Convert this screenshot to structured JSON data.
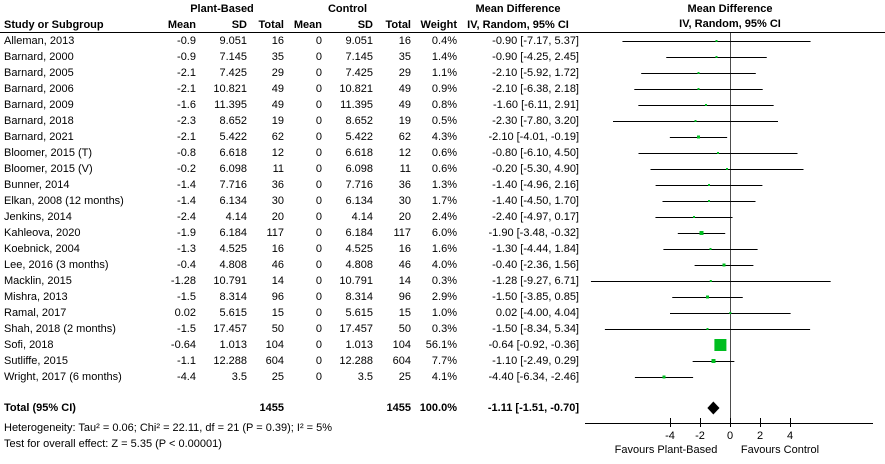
{
  "table": {
    "group_headers": {
      "plant_based": "Plant-Based",
      "control": "Control",
      "mean_difference_text": "Mean Difference",
      "mean_difference_plot": "Mean Difference"
    },
    "col_headers": {
      "study": "Study or Subgroup",
      "mean_pb": "Mean",
      "sd_pb": "SD",
      "total_pb": "Total",
      "mean_c": "Mean",
      "sd_c": "SD",
      "total_c": "Total",
      "weight": "Weight",
      "iv_text": "IV, Random, 95% CI",
      "iv_plot": "IV, Random, 95% CI"
    }
  },
  "chart_data": {
    "type": "scatter",
    "subtype": "forest-plot",
    "effect_measure": "Mean Difference",
    "model": "IV, Random, 95% CI",
    "marker_color": "#00be20",
    "x_ticks": [
      -4,
      -2,
      0,
      2,
      4
    ],
    "favours_left": "Favours Plant-Based",
    "favours_right": "Favours Control",
    "studies": [
      {
        "name": "Alleman, 2013",
        "mean_pb": "-0.9",
        "sd_pb": "9.051",
        "total_pb": "16",
        "mean_c": "0",
        "sd_c": "9.051",
        "total_c": "16",
        "weight": "0.4%",
        "md": -0.9,
        "ci_low": -7.17,
        "ci_high": 5.37,
        "md_label": "-0.90 [-7.17, 5.37]"
      },
      {
        "name": "Barnard, 2000",
        "mean_pb": "-0.9",
        "sd_pb": "7.145",
        "total_pb": "35",
        "mean_c": "0",
        "sd_c": "7.145",
        "total_c": "35",
        "weight": "1.4%",
        "md": -0.9,
        "ci_low": -4.25,
        "ci_high": 2.45,
        "md_label": "-0.90 [-4.25, 2.45]"
      },
      {
        "name": "Barnard, 2005",
        "mean_pb": "-2.1",
        "sd_pb": "7.425",
        "total_pb": "29",
        "mean_c": "0",
        "sd_c": "7.425",
        "total_c": "29",
        "weight": "1.1%",
        "md": -2.1,
        "ci_low": -5.92,
        "ci_high": 1.72,
        "md_label": "-2.10 [-5.92, 1.72]"
      },
      {
        "name": "Barnard, 2006",
        "mean_pb": "-2.1",
        "sd_pb": "10.821",
        "total_pb": "49",
        "mean_c": "0",
        "sd_c": "10.821",
        "total_c": "49",
        "weight": "0.9%",
        "md": -2.1,
        "ci_low": -6.38,
        "ci_high": 2.18,
        "md_label": "-2.10 [-6.38, 2.18]"
      },
      {
        "name": "Barnard, 2009",
        "mean_pb": "-1.6",
        "sd_pb": "11.395",
        "total_pb": "49",
        "mean_c": "0",
        "sd_c": "11.395",
        "total_c": "49",
        "weight": "0.8%",
        "md": -1.6,
        "ci_low": -6.11,
        "ci_high": 2.91,
        "md_label": "-1.60 [-6.11, 2.91]"
      },
      {
        "name": "Barnard, 2018",
        "mean_pb": "-2.3",
        "sd_pb": "8.652",
        "total_pb": "19",
        "mean_c": "0",
        "sd_c": "8.652",
        "total_c": "19",
        "weight": "0.5%",
        "md": -2.3,
        "ci_low": -7.8,
        "ci_high": 3.2,
        "md_label": "-2.30 [-7.80, 3.20]"
      },
      {
        "name": "Barnard, 2021",
        "mean_pb": "-2.1",
        "sd_pb": "5.422",
        "total_pb": "62",
        "mean_c": "0",
        "sd_c": "5.422",
        "total_c": "62",
        "weight": "4.3%",
        "md": -2.1,
        "ci_low": -4.01,
        "ci_high": -0.19,
        "md_label": "-2.10 [-4.01, -0.19]"
      },
      {
        "name": "Bloomer, 2015 (T)",
        "mean_pb": "-0.8",
        "sd_pb": "6.618",
        "total_pb": "12",
        "mean_c": "0",
        "sd_c": "6.618",
        "total_c": "12",
        "weight": "0.6%",
        "md": -0.8,
        "ci_low": -6.1,
        "ci_high": 4.5,
        "md_label": "-0.80 [-6.10, 4.50]"
      },
      {
        "name": "Bloomer, 2015 (V)",
        "mean_pb": "-0.2",
        "sd_pb": "6.098",
        "total_pb": "11",
        "mean_c": "0",
        "sd_c": "6.098",
        "total_c": "11",
        "weight": "0.6%",
        "md": -0.2,
        "ci_low": -5.3,
        "ci_high": 4.9,
        "md_label": "-0.20 [-5.30, 4.90]"
      },
      {
        "name": "Bunner, 2014",
        "mean_pb": "-1.4",
        "sd_pb": "7.716",
        "total_pb": "36",
        "mean_c": "0",
        "sd_c": "7.716",
        "total_c": "36",
        "weight": "1.3%",
        "md": -1.4,
        "ci_low": -4.96,
        "ci_high": 2.16,
        "md_label": "-1.40 [-4.96, 2.16]"
      },
      {
        "name": "Elkan, 2008 (12 months)",
        "mean_pb": "-1.4",
        "sd_pb": "6.134",
        "total_pb": "30",
        "mean_c": "0",
        "sd_c": "6.134",
        "total_c": "30",
        "weight": "1.7%",
        "md": -1.4,
        "ci_low": -4.5,
        "ci_high": 1.7,
        "md_label": "-1.40 [-4.50, 1.70]"
      },
      {
        "name": "Jenkins, 2014",
        "mean_pb": "-2.4",
        "sd_pb": "4.14",
        "total_pb": "20",
        "mean_c": "0",
        "sd_c": "4.14",
        "total_c": "20",
        "weight": "2.4%",
        "md": -2.4,
        "ci_low": -4.97,
        "ci_high": 0.17,
        "md_label": "-2.40 [-4.97, 0.17]"
      },
      {
        "name": "Kahleova, 2020",
        "mean_pb": "-1.9",
        "sd_pb": "6.184",
        "total_pb": "117",
        "mean_c": "0",
        "sd_c": "6.184",
        "total_c": "117",
        "weight": "6.0%",
        "md": -1.9,
        "ci_low": -3.48,
        "ci_high": -0.32,
        "md_label": "-1.90 [-3.48, -0.32]"
      },
      {
        "name": "Koebnick, 2004",
        "mean_pb": "-1.3",
        "sd_pb": "4.525",
        "total_pb": "16",
        "mean_c": "0",
        "sd_c": "4.525",
        "total_c": "16",
        "weight": "1.6%",
        "md": -1.3,
        "ci_low": -4.44,
        "ci_high": 1.84,
        "md_label": "-1.30 [-4.44, 1.84]"
      },
      {
        "name": "Lee, 2016 (3 months)",
        "mean_pb": "-0.4",
        "sd_pb": "4.808",
        "total_pb": "46",
        "mean_c": "0",
        "sd_c": "4.808",
        "total_c": "46",
        "weight": "4.0%",
        "md": -0.4,
        "ci_low": -2.36,
        "ci_high": 1.56,
        "md_label": "-0.40 [-2.36, 1.56]"
      },
      {
        "name": "Macklin, 2015",
        "mean_pb": "-1.28",
        "sd_pb": "10.791",
        "total_pb": "14",
        "mean_c": "0",
        "sd_c": "10.791",
        "total_c": "14",
        "weight": "0.3%",
        "md": -1.28,
        "ci_low": -9.27,
        "ci_high": 6.71,
        "md_label": "-1.28 [-9.27, 6.71]"
      },
      {
        "name": "Mishra, 2013",
        "mean_pb": "-1.5",
        "sd_pb": "8.314",
        "total_pb": "96",
        "mean_c": "0",
        "sd_c": "8.314",
        "total_c": "96",
        "weight": "2.9%",
        "md": -1.5,
        "ci_low": -3.85,
        "ci_high": 0.85,
        "md_label": "-1.50 [-3.85, 0.85]"
      },
      {
        "name": "Ramal, 2017",
        "mean_pb": "0.02",
        "sd_pb": "5.615",
        "total_pb": "15",
        "mean_c": "0",
        "sd_c": "5.615",
        "total_c": "15",
        "weight": "1.0%",
        "md": 0.02,
        "ci_low": -4.0,
        "ci_high": 4.04,
        "md_label": "0.02 [-4.00, 4.04]"
      },
      {
        "name": "Shah, 2018 (2 months)",
        "mean_pb": "-1.5",
        "sd_pb": "17.457",
        "total_pb": "50",
        "mean_c": "0",
        "sd_c": "17.457",
        "total_c": "50",
        "weight": "0.3%",
        "md": -1.5,
        "ci_low": -8.34,
        "ci_high": 5.34,
        "md_label": "-1.50 [-8.34, 5.34]"
      },
      {
        "name": "Sofi, 2018",
        "mean_pb": "-0.64",
        "sd_pb": "1.013",
        "total_pb": "104",
        "mean_c": "0",
        "sd_c": "1.013",
        "total_c": "104",
        "weight": "56.1%",
        "md": -0.64,
        "ci_low": -0.92,
        "ci_high": -0.36,
        "md_label": "-0.64 [-0.92, -0.36]"
      },
      {
        "name": "Sutliffe, 2015",
        "mean_pb": "-1.1",
        "sd_pb": "12.288",
        "total_pb": "604",
        "mean_c": "0",
        "sd_c": "12.288",
        "total_c": "604",
        "weight": "7.7%",
        "md": -1.1,
        "ci_low": -2.49,
        "ci_high": 0.29,
        "md_label": "-1.10 [-2.49, 0.29]"
      },
      {
        "name": "Wright, 2017 (6 months)",
        "mean_pb": "-4.4",
        "sd_pb": "3.5",
        "total_pb": "25",
        "mean_c": "0",
        "sd_c": "3.5",
        "total_c": "25",
        "weight": "4.1%",
        "md": -4.4,
        "ci_low": -6.34,
        "ci_high": -2.46,
        "md_label": "-4.40 [-6.34, -2.46]"
      }
    ],
    "total": {
      "label": "Total (95% CI)",
      "total_pb": "1455",
      "total_c": "1455",
      "weight": "100.0%",
      "md": -1.11,
      "ci_low": -1.51,
      "ci_high": -0.7,
      "md_label": "-1.11 [-1.51, -0.70]"
    },
    "heterogeneity": "Heterogeneity: Tau² = 0.06; Chi² = 22.11, df = 21 (P = 0.39); I² = 5%",
    "overall_effect": "Test for overall effect: Z = 5.35 (P < 0.00001)"
  }
}
